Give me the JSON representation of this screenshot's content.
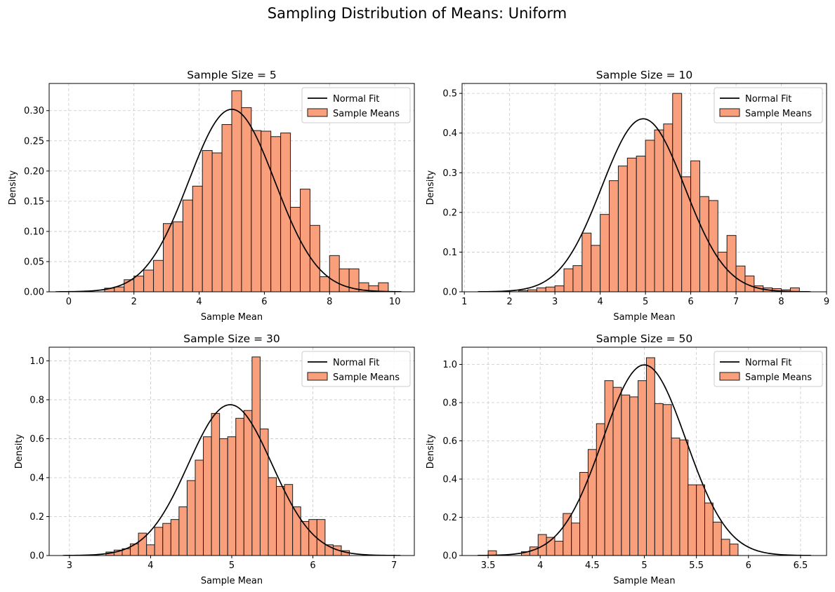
{
  "figure": {
    "title": "Sampling Distribution of Means: Uniform"
  },
  "chart_data": [
    {
      "type": "bar",
      "title": "Sample Size = 5",
      "xlabel": "Sample Mean",
      "ylabel": "Density",
      "xlim": [
        -0.6,
        10.6
      ],
      "ylim": [
        0,
        0.345
      ],
      "xticks": [
        0,
        2,
        4,
        6,
        8,
        10
      ],
      "yticks": [
        0.0,
        0.05,
        0.1,
        0.15,
        0.2,
        0.25,
        0.3
      ],
      "ytick_decimals": 2,
      "grid": true,
      "legend_position": "top-right",
      "legend": [
        "Normal Fit",
        "Sample Means"
      ],
      "bins": {
        "start": 1.1,
        "width": 0.3,
        "values": [
          0.006,
          0.008,
          0.02,
          0.026,
          0.036,
          0.052,
          0.113,
          0.116,
          0.152,
          0.175,
          0.234,
          0.23,
          0.277,
          0.333,
          0.305,
          0.267,
          0.266,
          0.257,
          0.263,
          0.14,
          0.17,
          0.11,
          0.025,
          0.06,
          0.038,
          0.038,
          0.015,
          0.01,
          0.015
        ]
      },
      "normal_fit": {
        "mean": 5.0,
        "sd": 1.32,
        "x_range": [
          -0.4,
          10.2
        ]
      }
    },
    {
      "type": "bar",
      "title": "Sample Size = 10",
      "xlabel": "Sample Mean",
      "ylabel": "Density",
      "xlim": [
        0.95,
        9.0
      ],
      "ylim": [
        0,
        0.525
      ],
      "xticks": [
        1,
        2,
        3,
        4,
        5,
        6,
        7,
        8,
        9
      ],
      "yticks": [
        0.0,
        0.1,
        0.2,
        0.3,
        0.4,
        0.5
      ],
      "ytick_decimals": 1,
      "grid": true,
      "legend_position": "top-right",
      "legend": [
        "Normal Fit",
        "Sample Means"
      ],
      "bins": {
        "start": 2.2,
        "width": 0.2,
        "values": [
          0.003,
          0.005,
          0.01,
          0.012,
          0.015,
          0.058,
          0.066,
          0.148,
          0.117,
          0.195,
          0.28,
          0.317,
          0.337,
          0.342,
          0.382,
          0.408,
          0.423,
          0.5,
          0.29,
          0.33,
          0.24,
          0.23,
          0.1,
          0.142,
          0.065,
          0.04,
          0.015,
          0.01,
          0.008,
          0.005,
          0.01
        ]
      },
      "normal_fit": {
        "mean": 4.95,
        "sd": 0.915,
        "x_range": [
          1.3,
          8.65
        ]
      }
    },
    {
      "type": "bar",
      "title": "Sample Size = 30",
      "xlabel": "Sample Mean",
      "ylabel": "Density",
      "xlim": [
        2.75,
        7.25
      ],
      "ylim": [
        0,
        1.07
      ],
      "xticks": [
        3,
        4,
        5,
        6,
        7
      ],
      "yticks": [
        0.0,
        0.2,
        0.4,
        0.6,
        0.8,
        1.0
      ],
      "ytick_decimals": 1,
      "grid": true,
      "legend_position": "top-right",
      "legend": [
        "Normal Fit",
        "Sample Means"
      ],
      "bins": {
        "start": 3.45,
        "width": 0.1,
        "values": [
          0.018,
          0.028,
          0.035,
          0.06,
          0.115,
          0.055,
          0.145,
          0.165,
          0.185,
          0.25,
          0.385,
          0.49,
          0.61,
          0.73,
          0.6,
          0.61,
          0.705,
          0.745,
          1.02,
          0.65,
          0.4,
          0.355,
          0.365,
          0.25,
          0.175,
          0.185,
          0.185,
          0.055,
          0.05,
          0.025
        ]
      },
      "normal_fit": {
        "mean": 4.98,
        "sd": 0.515,
        "x_range": [
          2.92,
          7.08
        ]
      }
    },
    {
      "type": "bar",
      "title": "Sample Size = 50",
      "xlabel": "Sample Mean",
      "ylabel": "Density",
      "xlim": [
        3.25,
        6.75
      ],
      "ylim": [
        0,
        1.09
      ],
      "xticks": [
        3.5,
        4.0,
        4.5,
        5.0,
        5.5,
        6.0,
        6.5
      ],
      "yticks": [
        0.0,
        0.2,
        0.4,
        0.6,
        0.8,
        1.0
      ],
      "ytick_decimals": 1,
      "grid": true,
      "legend_position": "top-right",
      "legend": [
        "Normal Fit",
        "Sample Means"
      ],
      "bins": {
        "start": 3.5,
        "width": 0.08,
        "values": [
          0.025,
          0.0,
          0.0,
          0.0,
          0.02,
          0.045,
          0.11,
          0.095,
          0.075,
          0.22,
          0.17,
          0.435,
          0.555,
          0.69,
          0.915,
          0.88,
          0.84,
          0.83,
          0.915,
          1.035,
          0.795,
          0.79,
          0.615,
          0.605,
          0.37,
          0.37,
          0.275,
          0.175,
          0.085,
          0.06
        ]
      },
      "normal_fit": {
        "mean": 5.0,
        "sd": 0.4,
        "x_range": [
          3.4,
          6.6
        ]
      }
    }
  ],
  "colors": {
    "bar_fill": "#fa9f7c",
    "bar_edge": "#1a1a1a",
    "line": "#000000",
    "grid": "#c8c8c8",
    "text": "#000000",
    "legend_border": "#cccccc"
  }
}
